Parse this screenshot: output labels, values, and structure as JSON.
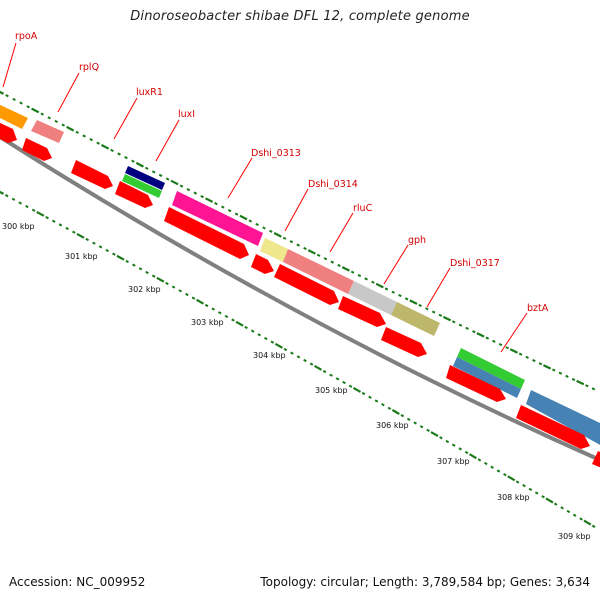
{
  "title": "Dinoroseobacter shibae DFL 12, complete genome",
  "footer": {
    "accession": "Accession: NC_009952",
    "summary": "Topology: circular; Length: 3,789,584 bp; Genes: 3,634"
  },
  "colors": {
    "cds": "#ff0000",
    "backbone": "#808080",
    "ticks": "#1a7a1a",
    "label": "#d40000"
  },
  "tick_labels": [
    "300 kbp",
    "301 kbp",
    "302 kbp",
    "303 kbp",
    "304 kbp",
    "305 kbp",
    "306 kbp",
    "307 kbp",
    "308 kbp",
    "309 kbp"
  ],
  "genes": [
    {
      "name": "rpoA",
      "color": "#ff9900"
    },
    {
      "name": "rplQ",
      "color": "#f08080"
    },
    {
      "name": "luxR1",
      "color": "#ff0000"
    },
    {
      "name": "luxI",
      "color": "#000080"
    },
    {
      "name": "Dshi_0313",
      "color": "#ff1493"
    },
    {
      "name": "Dshi_0314",
      "color": "#f0e68c"
    },
    {
      "name": "rluC",
      "color": "#f08080"
    },
    {
      "name": "gph",
      "color": "#c0c0c0"
    },
    {
      "name": "Dshi_0317",
      "color": "#bdb76b"
    },
    {
      "name": "bztA",
      "color": "#4682b4"
    }
  ]
}
